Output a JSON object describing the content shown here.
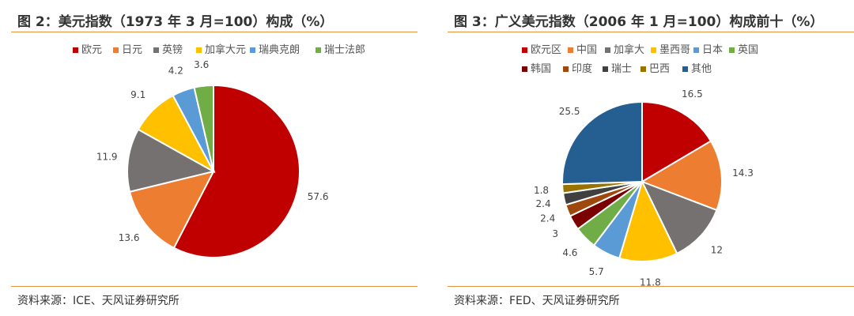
{
  "chart_data": [
    {
      "type": "pie",
      "title": "图 2：美元指数（1973 年 3 月=100）构成（%）",
      "source": "资料来源：ICE、天风证券研究所",
      "legend_position": "top",
      "categories": [
        "欧元",
        "日元",
        "英镑",
        "加拿大元",
        "瑞典克朗",
        "瑞士法郎"
      ],
      "values": [
        57.6,
        13.6,
        11.9,
        9.1,
        4.2,
        3.6
      ],
      "colors": [
        "#c00000",
        "#ed7d31",
        "#767171",
        "#ffc000",
        "#5b9bd5",
        "#70ad47"
      ]
    },
    {
      "type": "pie",
      "title": "图 3：广义美元指数（2006 年 1 月=100）构成前十（%）",
      "source": "资料来源：FED、天风证券研究所",
      "legend_position": "top",
      "categories": [
        "欧元区",
        "中国",
        "加拿大",
        "墨西哥",
        "日本",
        "英国",
        "韩国",
        "印度",
        "瑞士",
        "巴西",
        "其他"
      ],
      "values": [
        16.5,
        14.3,
        12,
        11.8,
        5.7,
        4.6,
        3,
        2.4,
        2.4,
        1.8,
        25.5
      ],
      "colors": [
        "#c00000",
        "#ed7d31",
        "#767171",
        "#ffc000",
        "#5b9bd5",
        "#70ad47",
        "#7b0000",
        "#9e480e",
        "#404040",
        "#997300",
        "#255e91"
      ]
    }
  ]
}
